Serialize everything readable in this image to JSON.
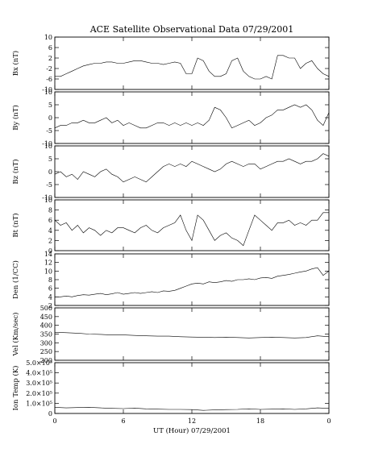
{
  "chart_data": {
    "type": "line",
    "title": "ACE Satellite Observational Data   07/29/2001",
    "xlabel": "UT (Hour)  07/29/2001",
    "x_range": [
      0,
      24
    ],
    "x_ticks": [
      "0",
      "6",
      "12",
      "18",
      "0"
    ],
    "x_tick_values": [
      0,
      6,
      12,
      18,
      24
    ],
    "panels": [
      {
        "name": "Bx",
        "ylabel": "Bx (nT)",
        "ylim": [
          -10,
          10
        ],
        "yticks": [
          10,
          6,
          2,
          -2,
          -6,
          -10
        ],
        "yticklabels": [
          "10",
          "6",
          "2",
          "-2",
          "-6",
          "-10"
        ],
        "series": {
          "x": [
            0,
            0.5,
            1,
            1.5,
            2,
            2.5,
            3,
            3.5,
            4,
            4.5,
            5,
            5.5,
            6,
            6.5,
            7,
            7.5,
            8,
            8.5,
            9,
            9.5,
            10,
            10.5,
            11,
            11.5,
            12,
            12.5,
            13,
            13.5,
            14,
            14.5,
            15,
            15.5,
            16,
            16.5,
            17,
            17.5,
            18,
            18.5,
            19,
            19.5,
            20,
            20.5,
            21,
            21.5,
            22,
            22.5,
            23,
            23.5,
            24
          ],
          "y": [
            -5,
            -5,
            -4,
            -3,
            -2,
            -1,
            -0.5,
            0,
            0,
            0.5,
            0.5,
            0,
            0,
            0.5,
            1,
            1,
            0.5,
            0,
            0,
            -0.5,
            0,
            0.5,
            0,
            -4,
            -4,
            2,
            1,
            -3,
            -5,
            -5,
            -4,
            1,
            2,
            -3,
            -5,
            -6,
            -6,
            -5,
            -6,
            3,
            3,
            2,
            2,
            -2,
            0,
            1,
            -2,
            -4,
            -5
          ]
        }
      },
      {
        "name": "By",
        "ylabel": "By (nT)",
        "ylim": [
          -10,
          10
        ],
        "yticks": [
          10,
          5,
          0,
          -5,
          -10
        ],
        "yticklabels": [
          "10",
          "5",
          "0",
          "-5",
          "-10"
        ],
        "series": {
          "x": [
            0,
            0.5,
            1,
            1.5,
            2,
            2.5,
            3,
            3.5,
            4,
            4.5,
            5,
            5.5,
            6,
            6.5,
            7,
            7.5,
            8,
            8.5,
            9,
            9.5,
            10,
            10.5,
            11,
            11.5,
            12,
            12.5,
            13,
            13.5,
            14,
            14.5,
            15,
            15.5,
            16,
            16.5,
            17,
            17.5,
            18,
            18.5,
            19,
            19.5,
            20,
            20.5,
            21,
            21.5,
            22,
            22.5,
            23,
            23.5,
            24
          ],
          "y": [
            -4,
            -3,
            -3,
            -2,
            -2,
            -1,
            -2,
            -2,
            -1,
            0,
            -2,
            -1,
            -3,
            -2,
            -3,
            -4,
            -4,
            -3,
            -2,
            -2,
            -3,
            -2,
            -3,
            -2,
            -3,
            -2,
            -3,
            -1,
            4,
            3,
            0,
            -4,
            -3,
            -2,
            -1,
            -3,
            -2,
            0,
            1,
            3,
            3,
            4,
            5,
            4,
            5,
            3,
            -1,
            -3,
            2
          ]
        }
      },
      {
        "name": "Bz",
        "ylabel": "Bz (nT)",
        "ylim": [
          -10,
          10
        ],
        "yticks": [
          10,
          5,
          0,
          -5,
          -10
        ],
        "yticklabels": [
          "10",
          "5",
          "0",
          "-5",
          "-10"
        ],
        "series": {
          "x": [
            0,
            0.5,
            1,
            1.5,
            2,
            2.5,
            3,
            3.5,
            4,
            4.5,
            5,
            5.5,
            6,
            6.5,
            7,
            7.5,
            8,
            8.5,
            9,
            9.5,
            10,
            10.5,
            11,
            11.5,
            12,
            12.5,
            13,
            13.5,
            14,
            14.5,
            15,
            15.5,
            16,
            16.5,
            17,
            17.5,
            18,
            18.5,
            19,
            19.5,
            20,
            20.5,
            21,
            21.5,
            22,
            22.5,
            23,
            23.5,
            24
          ],
          "y": [
            -1,
            0,
            -2,
            -1,
            -3,
            0,
            -1,
            -2,
            0,
            1,
            -1,
            -2,
            -4,
            -3,
            -2,
            -3,
            -4,
            -2,
            0,
            2,
            3,
            2,
            3,
            2,
            4,
            3,
            2,
            1,
            0,
            1,
            3,
            4,
            3,
            2,
            3,
            3,
            1,
            2,
            3,
            4,
            4,
            5,
            4,
            3,
            4,
            4,
            5,
            7,
            6
          ]
        }
      },
      {
        "name": "Bt",
        "ylabel": "Bt (nT)",
        "ylim": [
          0,
          10
        ],
        "yticks": [
          10,
          8,
          6,
          4,
          2,
          0
        ],
        "yticklabels": [
          "10",
          "8",
          "6",
          "4",
          "2",
          "0"
        ],
        "series": {
          "x": [
            0,
            0.5,
            1,
            1.5,
            2,
            2.5,
            3,
            3.5,
            4,
            4.5,
            5,
            5.5,
            6,
            6.5,
            7,
            7.5,
            8,
            8.5,
            9,
            9.5,
            10,
            10.5,
            11,
            11.5,
            12,
            12.5,
            13,
            13.5,
            14,
            14.5,
            15,
            15.5,
            16,
            16.5,
            17,
            17.5,
            18,
            18.5,
            19,
            19.5,
            20,
            20.5,
            21,
            21.5,
            22,
            22.5,
            23,
            23.5,
            24
          ],
          "y": [
            6,
            5,
            5.5,
            4,
            5,
            3.5,
            4.5,
            4,
            3,
            4,
            3.5,
            4.5,
            4.5,
            4,
            3.5,
            4.5,
            5,
            4,
            3.5,
            4.5,
            5,
            5.5,
            7,
            4,
            2,
            7,
            6,
            4,
            2,
            3,
            3.5,
            2.5,
            2,
            1,
            4,
            7,
            6,
            5,
            4,
            5.5,
            5.5,
            6,
            5,
            5.5,
            5,
            6,
            6,
            7.5,
            7.5
          ]
        }
      },
      {
        "name": "Den",
        "ylabel": "Den (1/CC)",
        "ylim": [
          2,
          14
        ],
        "yticks": [
          14,
          12,
          10,
          8,
          6,
          4,
          2
        ],
        "yticklabels": [
          "14",
          "12",
          "10",
          "8",
          "6",
          "4",
          "2"
        ],
        "series": {
          "x": [
            0,
            0.5,
            1,
            1.5,
            2,
            2.5,
            3,
            3.5,
            4,
            4.5,
            5,
            5.5,
            6,
            6.5,
            7,
            7.5,
            8,
            8.5,
            9,
            9.5,
            10,
            10.5,
            11,
            11.5,
            12,
            12.5,
            13,
            13.5,
            14,
            14.5,
            15,
            15.5,
            16,
            16.5,
            17,
            17.5,
            18,
            18.5,
            19,
            19.5,
            20,
            20.5,
            21,
            21.5,
            22,
            22.5,
            23,
            23.5,
            24
          ],
          "y": [
            4,
            4,
            4.2,
            4,
            4.3,
            4.5,
            4.4,
            4.6,
            4.8,
            4.5,
            4.7,
            5,
            4.6,
            4.8,
            5,
            4.8,
            5,
            5.2,
            5,
            5.4,
            5.3,
            5.5,
            6,
            6.5,
            7,
            7.2,
            7,
            7.5,
            7.3,
            7.5,
            7.8,
            7.6,
            8,
            8,
            8.2,
            8,
            8.4,
            8.5,
            8.3,
            8.8,
            9,
            9.2,
            9.5,
            9.8,
            10,
            10.5,
            10.8,
            9,
            10
          ]
        }
      },
      {
        "name": "Vel",
        "ylabel": "Vel (Km/sec)",
        "ylim": [
          200,
          500
        ],
        "yticks": [
          500,
          450,
          400,
          350,
          300,
          250,
          200
        ],
        "yticklabels": [
          "500",
          "450",
          "400",
          "350",
          "300",
          "250",
          "200"
        ],
        "series": {
          "x": [
            0,
            1,
            2,
            3,
            4,
            5,
            6,
            7,
            8,
            9,
            10,
            11,
            12,
            13,
            14,
            15,
            16,
            17,
            18,
            19,
            20,
            21,
            22,
            23,
            24
          ],
          "y": [
            360,
            358,
            355,
            350,
            348,
            345,
            345,
            342,
            340,
            338,
            338,
            335,
            333,
            332,
            330,
            332,
            330,
            328,
            330,
            332,
            330,
            328,
            330,
            340,
            335
          ]
        }
      },
      {
        "name": "Ion Temp",
        "ylabel": "Ion Temp (K)",
        "ylim": [
          0,
          500000
        ],
        "yticks": [
          500000,
          400000,
          300000,
          200000,
          100000,
          0
        ],
        "yticklabels": [
          "5.0×10⁵",
          "4.0×10⁵",
          "3.0×10⁵",
          "2.0×10⁵",
          "1.0×10⁵",
          "0"
        ],
        "series": {
          "x": [
            0,
            1,
            2,
            3,
            4,
            5,
            6,
            7,
            8,
            9,
            10,
            11,
            12,
            13,
            14,
            15,
            16,
            17,
            18,
            19,
            20,
            21,
            22,
            23,
            24
          ],
          "y": [
            60000,
            55000,
            58000,
            60000,
            55000,
            50000,
            48000,
            52000,
            45000,
            42000,
            40000,
            40000,
            38000,
            30000,
            35000,
            38000,
            40000,
            45000,
            40000,
            42000,
            45000,
            40000,
            45000,
            55000,
            50000
          ]
        }
      }
    ]
  }
}
